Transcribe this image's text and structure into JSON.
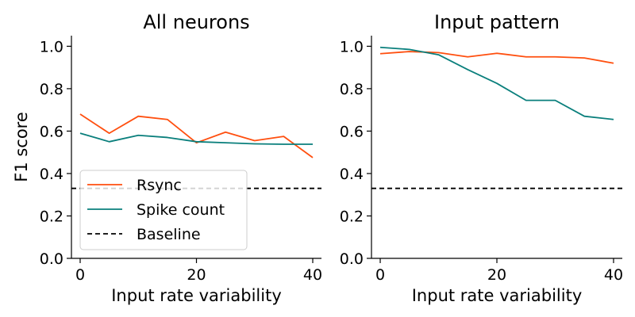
{
  "chart_data": [
    {
      "type": "line",
      "title": "All neurons",
      "xlabel": "Input rate variability",
      "ylabel": "F1 score",
      "xlim": [
        -1.5,
        41.5
      ],
      "ylim": [
        0.0,
        1.05
      ],
      "xticks": [
        0,
        20,
        40
      ],
      "yticks": [
        "0.0",
        "0.2",
        "0.4",
        "0.6",
        "0.8",
        "1.0"
      ],
      "x": [
        0,
        5,
        10,
        15,
        20,
        25,
        30,
        35,
        40
      ],
      "series": [
        {
          "name": "Rsync",
          "color": "#ff4f0f",
          "dash": "solid",
          "values": [
            0.68,
            0.59,
            0.67,
            0.655,
            0.545,
            0.595,
            0.555,
            0.575,
            0.475
          ]
        },
        {
          "name": "Spike count",
          "color": "#0a7f7c",
          "dash": "solid",
          "values": [
            0.59,
            0.55,
            0.58,
            0.57,
            0.55,
            0.545,
            0.54,
            0.538,
            0.538
          ]
        },
        {
          "name": "Baseline",
          "color": "#000000",
          "dash": "dashed",
          "values": [
            0.33,
            0.33,
            0.33,
            0.33,
            0.33,
            0.33,
            0.33,
            0.33,
            0.33
          ]
        }
      ],
      "baseline_full_width": true,
      "legend": "lower-left",
      "grid": false
    },
    {
      "type": "line",
      "title": "Input pattern",
      "xlabel": "Input rate variability",
      "ylabel": "",
      "xlim": [
        -1.5,
        41.5
      ],
      "ylim": [
        0.0,
        1.05
      ],
      "xticks": [
        0,
        20,
        40
      ],
      "yticks": [
        "0.0",
        "0.2",
        "0.4",
        "0.6",
        "0.8",
        "1.0"
      ],
      "x": [
        0,
        5,
        10,
        15,
        20,
        25,
        30,
        35,
        40
      ],
      "series": [
        {
          "name": "Rsync",
          "color": "#ff4f0f",
          "dash": "solid",
          "values": [
            0.965,
            0.975,
            0.97,
            0.95,
            0.967,
            0.95,
            0.95,
            0.945,
            0.92
          ]
        },
        {
          "name": "Spike count",
          "color": "#0a7f7c",
          "dash": "solid",
          "values": [
            0.995,
            0.985,
            0.96,
            0.89,
            0.825,
            0.745,
            0.745,
            0.67,
            0.655
          ]
        },
        {
          "name": "Baseline",
          "color": "#000000",
          "dash": "dashed",
          "values": [
            0.33,
            0.33,
            0.33,
            0.33,
            0.33,
            0.33,
            0.33,
            0.33,
            0.33
          ]
        }
      ],
      "baseline_full_width": true,
      "legend": "none",
      "grid": false
    }
  ]
}
